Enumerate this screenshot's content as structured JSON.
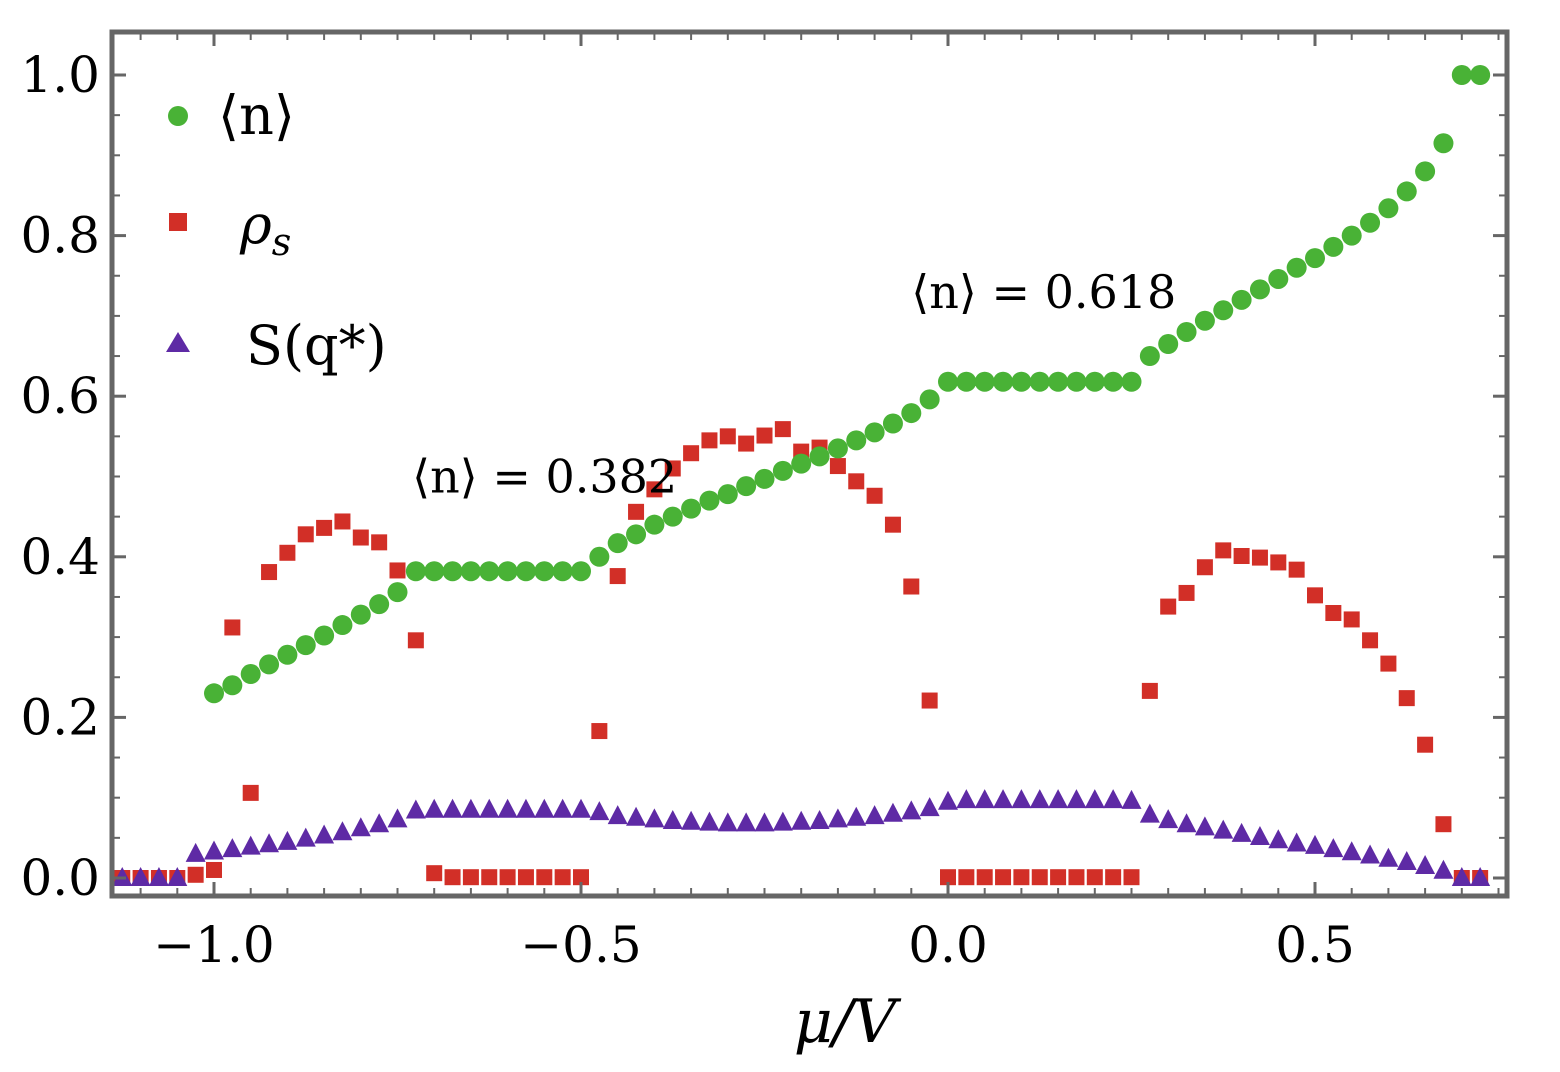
{
  "chart_data": {
    "type": "scatter",
    "title": "",
    "xlabel": "μ/V",
    "ylabel": "",
    "xlim": [
      -1.15,
      0.75
    ],
    "ylim": [
      -0.03,
      1.05
    ],
    "xticks": [
      -1.0,
      -0.5,
      0.0,
      0.5
    ],
    "xtick_labels": [
      "−1.0",
      "−0.5",
      "0.0",
      "0.5"
    ],
    "yticks": [
      0.0,
      0.2,
      0.4,
      0.6,
      0.8,
      1.0
    ],
    "ytick_labels": [
      "0.0",
      "0.2",
      "0.4",
      "0.6",
      "0.8",
      "1.0"
    ],
    "grid": false,
    "legend_position": "top-left",
    "colors": {
      "n": "#49b236",
      "rho": "#d22f27",
      "S": "#5e2aa5",
      "frame": "#666666"
    },
    "series": [
      {
        "name": "⟨n⟩",
        "marker": "circle",
        "points": [
          [
            -1.0,
            0.23
          ],
          [
            -0.975,
            0.24
          ],
          [
            -0.95,
            0.254
          ],
          [
            -0.925,
            0.266
          ],
          [
            -0.9,
            0.278
          ],
          [
            -0.875,
            0.29
          ],
          [
            -0.85,
            0.302
          ],
          [
            -0.825,
            0.315
          ],
          [
            -0.8,
            0.328
          ],
          [
            -0.775,
            0.341
          ],
          [
            -0.75,
            0.356
          ],
          [
            -0.725,
            0.382
          ],
          [
            -0.7,
            0.382
          ],
          [
            -0.675,
            0.382
          ],
          [
            -0.65,
            0.382
          ],
          [
            -0.625,
            0.382
          ],
          [
            -0.6,
            0.382
          ],
          [
            -0.575,
            0.382
          ],
          [
            -0.55,
            0.382
          ],
          [
            -0.525,
            0.382
          ],
          [
            -0.5,
            0.382
          ],
          [
            -0.475,
            0.4
          ],
          [
            -0.45,
            0.417
          ],
          [
            -0.425,
            0.428
          ],
          [
            -0.4,
            0.44
          ],
          [
            -0.375,
            0.45
          ],
          [
            -0.35,
            0.46
          ],
          [
            -0.325,
            0.47
          ],
          [
            -0.3,
            0.478
          ],
          [
            -0.275,
            0.488
          ],
          [
            -0.25,
            0.497
          ],
          [
            -0.225,
            0.507
          ],
          [
            -0.2,
            0.516
          ],
          [
            -0.175,
            0.525
          ],
          [
            -0.15,
            0.535
          ],
          [
            -0.125,
            0.545
          ],
          [
            -0.1,
            0.555
          ],
          [
            -0.075,
            0.566
          ],
          [
            -0.05,
            0.579
          ],
          [
            -0.025,
            0.596
          ],
          [
            0.0,
            0.618
          ],
          [
            0.025,
            0.618
          ],
          [
            0.05,
            0.618
          ],
          [
            0.075,
            0.618
          ],
          [
            0.1,
            0.618
          ],
          [
            0.125,
            0.618
          ],
          [
            0.15,
            0.618
          ],
          [
            0.175,
            0.618
          ],
          [
            0.2,
            0.618
          ],
          [
            0.225,
            0.618
          ],
          [
            0.25,
            0.618
          ],
          [
            0.275,
            0.65
          ],
          [
            0.3,
            0.665
          ],
          [
            0.325,
            0.68
          ],
          [
            0.35,
            0.694
          ],
          [
            0.375,
            0.707
          ],
          [
            0.4,
            0.72
          ],
          [
            0.425,
            0.733
          ],
          [
            0.45,
            0.746
          ],
          [
            0.475,
            0.76
          ],
          [
            0.5,
            0.772
          ],
          [
            0.525,
            0.786
          ],
          [
            0.55,
            0.8
          ],
          [
            0.575,
            0.816
          ],
          [
            0.6,
            0.834
          ],
          [
            0.625,
            0.855
          ],
          [
            0.65,
            0.88
          ],
          [
            0.675,
            0.915
          ],
          [
            0.7,
            1.0
          ],
          [
            0.725,
            1.0
          ]
        ]
      },
      {
        "name": "ρ_s",
        "marker": "square",
        "points": [
          [
            -1.125,
            0.0
          ],
          [
            -1.1,
            0.0
          ],
          [
            -1.075,
            0.0
          ],
          [
            -1.05,
            0.0
          ],
          [
            -1.025,
            0.004
          ],
          [
            -1.0,
            0.01
          ],
          [
            -0.975,
            0.312
          ],
          [
            -0.95,
            0.106
          ],
          [
            -0.925,
            0.381
          ],
          [
            -0.9,
            0.405
          ],
          [
            -0.875,
            0.428
          ],
          [
            -0.85,
            0.436
          ],
          [
            -0.825,
            0.444
          ],
          [
            -0.8,
            0.424
          ],
          [
            -0.775,
            0.418
          ],
          [
            -0.75,
            0.383
          ],
          [
            -0.725,
            0.296
          ],
          [
            -0.7,
            0.006
          ],
          [
            -0.675,
            0.001
          ],
          [
            -0.65,
            0.001
          ],
          [
            -0.625,
            0.001
          ],
          [
            -0.6,
            0.001
          ],
          [
            -0.575,
            0.001
          ],
          [
            -0.55,
            0.001
          ],
          [
            -0.525,
            0.001
          ],
          [
            -0.5,
            0.001
          ],
          [
            -0.475,
            0.183
          ],
          [
            -0.45,
            0.376
          ],
          [
            -0.425,
            0.456
          ],
          [
            -0.4,
            0.484
          ],
          [
            -0.375,
            0.51
          ],
          [
            -0.35,
            0.529
          ],
          [
            -0.325,
            0.545
          ],
          [
            -0.3,
            0.55
          ],
          [
            -0.275,
            0.541
          ],
          [
            -0.25,
            0.551
          ],
          [
            -0.225,
            0.559
          ],
          [
            -0.2,
            0.531
          ],
          [
            -0.175,
            0.536
          ],
          [
            -0.15,
            0.513
          ],
          [
            -0.125,
            0.494
          ],
          [
            -0.1,
            0.476
          ],
          [
            -0.075,
            0.44
          ],
          [
            -0.05,
            0.363
          ],
          [
            -0.025,
            0.221
          ],
          [
            0.0,
            0.001
          ],
          [
            0.025,
            0.001
          ],
          [
            0.05,
            0.001
          ],
          [
            0.075,
            0.001
          ],
          [
            0.1,
            0.001
          ],
          [
            0.125,
            0.001
          ],
          [
            0.15,
            0.001
          ],
          [
            0.175,
            0.001
          ],
          [
            0.2,
            0.001
          ],
          [
            0.225,
            0.001
          ],
          [
            0.25,
            0.001
          ],
          [
            0.275,
            0.233
          ],
          [
            0.3,
            0.338
          ],
          [
            0.325,
            0.355
          ],
          [
            0.35,
            0.387
          ],
          [
            0.375,
            0.408
          ],
          [
            0.4,
            0.401
          ],
          [
            0.425,
            0.399
          ],
          [
            0.45,
            0.393
          ],
          [
            0.475,
            0.384
          ],
          [
            0.5,
            0.352
          ],
          [
            0.525,
            0.33
          ],
          [
            0.55,
            0.322
          ],
          [
            0.575,
            0.296
          ],
          [
            0.6,
            0.267
          ],
          [
            0.625,
            0.224
          ],
          [
            0.65,
            0.166
          ],
          [
            0.675,
            0.067
          ],
          [
            0.7,
            0.0
          ],
          [
            0.725,
            0.0
          ]
        ]
      },
      {
        "name": "S(q*)",
        "marker": "triangle",
        "points": [
          [
            -1.125,
            0.0
          ],
          [
            -1.1,
            0.0
          ],
          [
            -1.075,
            0.0
          ],
          [
            -1.05,
            0.0
          ],
          [
            -1.025,
            0.03
          ],
          [
            -1.0,
            0.033
          ],
          [
            -0.975,
            0.036
          ],
          [
            -0.95,
            0.039
          ],
          [
            -0.925,
            0.042
          ],
          [
            -0.9,
            0.045
          ],
          [
            -0.875,
            0.049
          ],
          [
            -0.85,
            0.053
          ],
          [
            -0.825,
            0.057
          ],
          [
            -0.8,
            0.062
          ],
          [
            -0.775,
            0.067
          ],
          [
            -0.75,
            0.073
          ],
          [
            -0.725,
            0.084
          ],
          [
            -0.7,
            0.085
          ],
          [
            -0.675,
            0.085
          ],
          [
            -0.65,
            0.085
          ],
          [
            -0.625,
            0.085
          ],
          [
            -0.6,
            0.085
          ],
          [
            -0.575,
            0.085
          ],
          [
            -0.55,
            0.085
          ],
          [
            -0.525,
            0.085
          ],
          [
            -0.5,
            0.085
          ],
          [
            -0.475,
            0.082
          ],
          [
            -0.45,
            0.077
          ],
          [
            -0.425,
            0.075
          ],
          [
            -0.4,
            0.073
          ],
          [
            -0.375,
            0.071
          ],
          [
            -0.35,
            0.07
          ],
          [
            -0.325,
            0.069
          ],
          [
            -0.3,
            0.068
          ],
          [
            -0.275,
            0.068
          ],
          [
            -0.25,
            0.068
          ],
          [
            -0.225,
            0.069
          ],
          [
            -0.2,
            0.07
          ],
          [
            -0.175,
            0.071
          ],
          [
            -0.15,
            0.073
          ],
          [
            -0.125,
            0.075
          ],
          [
            -0.1,
            0.077
          ],
          [
            -0.075,
            0.08
          ],
          [
            -0.05,
            0.083
          ],
          [
            -0.025,
            0.087
          ],
          [
            0.0,
            0.095
          ],
          [
            0.025,
            0.097
          ],
          [
            0.05,
            0.097
          ],
          [
            0.075,
            0.097
          ],
          [
            0.1,
            0.097
          ],
          [
            0.125,
            0.097
          ],
          [
            0.15,
            0.097
          ],
          [
            0.175,
            0.097
          ],
          [
            0.2,
            0.097
          ],
          [
            0.225,
            0.097
          ],
          [
            0.25,
            0.096
          ],
          [
            0.275,
            0.079
          ],
          [
            0.3,
            0.072
          ],
          [
            0.325,
            0.067
          ],
          [
            0.35,
            0.063
          ],
          [
            0.375,
            0.059
          ],
          [
            0.4,
            0.055
          ],
          [
            0.425,
            0.051
          ],
          [
            0.45,
            0.047
          ],
          [
            0.475,
            0.043
          ],
          [
            0.5,
            0.04
          ],
          [
            0.525,
            0.036
          ],
          [
            0.55,
            0.032
          ],
          [
            0.575,
            0.028
          ],
          [
            0.6,
            0.024
          ],
          [
            0.625,
            0.02
          ],
          [
            0.65,
            0.015
          ],
          [
            0.675,
            0.009
          ],
          [
            0.7,
            0.0
          ],
          [
            0.725,
            0.0
          ]
        ]
      }
    ],
    "legend": [
      {
        "label": "⟨n⟩",
        "marker": "circle"
      },
      {
        "label": "ρ",
        "sub": "s",
        "marker": "square"
      },
      {
        "label": "S(q*)",
        "marker": "triangle"
      }
    ],
    "annotations": [
      {
        "text": "⟨n⟩ = 0.618",
        "x": -0.05,
        "y": 0.71
      },
      {
        "text": "⟨n⟩ = 0.382",
        "x": -0.73,
        "y": 0.48
      }
    ]
  }
}
